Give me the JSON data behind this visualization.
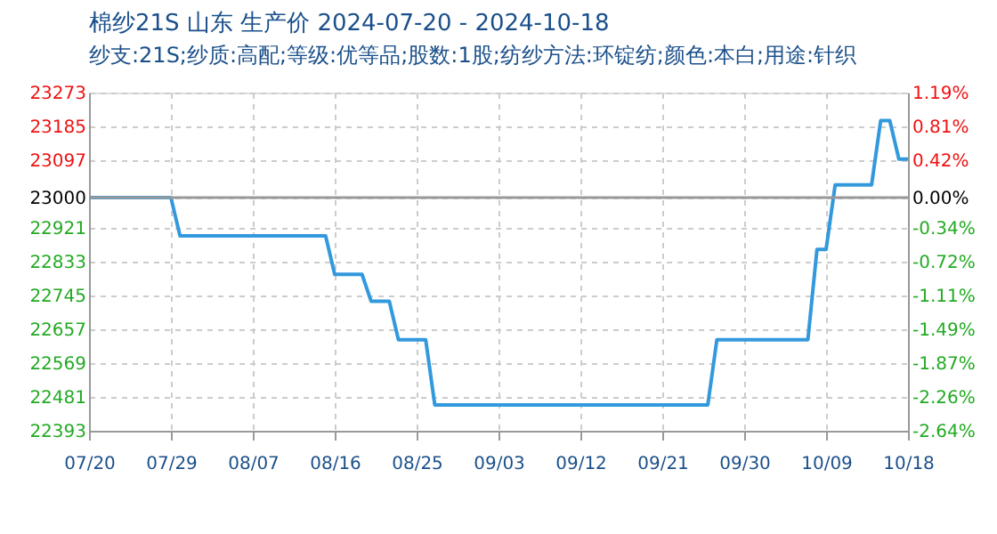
{
  "chart_data": {
    "type": "line",
    "title": "棉纱21S 山东 生产价 2024-07-20 - 2024-10-18",
    "subtitle": "纱支:21S;纱质:高配;等级:优等品;股数:1股;纺纱方法:环锭纺;颜色:本白;用途:针织",
    "x": [
      "2024-07-20",
      "2024-07-29",
      "2024-07-30",
      "2024-08-15",
      "2024-08-16",
      "2024-08-19",
      "2024-08-20",
      "2024-08-22",
      "2024-08-23",
      "2024-08-26",
      "2024-08-27",
      "2024-09-26",
      "2024-09-27",
      "2024-10-07",
      "2024-10-08",
      "2024-10-09",
      "2024-10-10",
      "2024-10-14",
      "2024-10-15",
      "2024-10-16",
      "2024-10-17",
      "2024-10-18"
    ],
    "series": [
      {
        "color": "#3399dd",
        "line_style": "solid",
        "marker": "none",
        "values": [
          23000,
          23000,
          22900,
          22900,
          22800,
          22800,
          22730,
          22730,
          22630,
          22630,
          22460,
          22460,
          22630,
          22630,
          22865,
          22865,
          23033,
          23033,
          23200,
          23200,
          23100,
          23100
        ]
      }
    ],
    "xlim": [
      "2024-07-20",
      "2024-10-18"
    ],
    "xticks": [
      {
        "value": "2024-07-20",
        "label": "07/20"
      },
      {
        "value": "2024-07-29",
        "label": "07/29"
      },
      {
        "value": "2024-08-07",
        "label": "08/07"
      },
      {
        "value": "2024-08-16",
        "label": "08/16"
      },
      {
        "value": "2024-08-25",
        "label": "08/25"
      },
      {
        "value": "2024-09-03",
        "label": "09/03"
      },
      {
        "value": "2024-09-12",
        "label": "09/12"
      },
      {
        "value": "2024-09-21",
        "label": "09/21"
      },
      {
        "value": "2024-09-30",
        "label": "09/30"
      },
      {
        "value": "2024-10-09",
        "label": "10/09"
      },
      {
        "value": "2024-10-18",
        "label": "10/18"
      }
    ],
    "ylim": [
      22393,
      23273
    ],
    "yticks": [
      22393,
      22481,
      22569,
      22657,
      22745,
      22833,
      22921,
      23000,
      23097,
      23185,
      23273
    ],
    "y2lim": [
      -2.64,
      1.19
    ],
    "y2ticks": [
      {
        "value": -2.64,
        "label": "-2.64%"
      },
      {
        "value": -2.26,
        "label": "-2.26%"
      },
      {
        "value": -1.87,
        "label": "-1.87%"
      },
      {
        "value": -1.49,
        "label": "-1.49%"
      },
      {
        "value": -1.11,
        "label": "-1.11%"
      },
      {
        "value": -0.72,
        "label": "-0.72%"
      },
      {
        "value": -0.34,
        "label": "-0.34%"
      },
      {
        "value": 0,
        "label": "0.00%"
      },
      {
        "value": 0.42,
        "label": "0.42%"
      },
      {
        "value": 0.81,
        "label": "0.81%"
      },
      {
        "value": 1.19,
        "label": "1.19%"
      }
    ],
    "ref_lines": [
      {
        "axis": "y",
        "value": 23000,
        "color": "#999999",
        "line_style": "solid"
      }
    ],
    "grid": true,
    "legend": false
  }
}
